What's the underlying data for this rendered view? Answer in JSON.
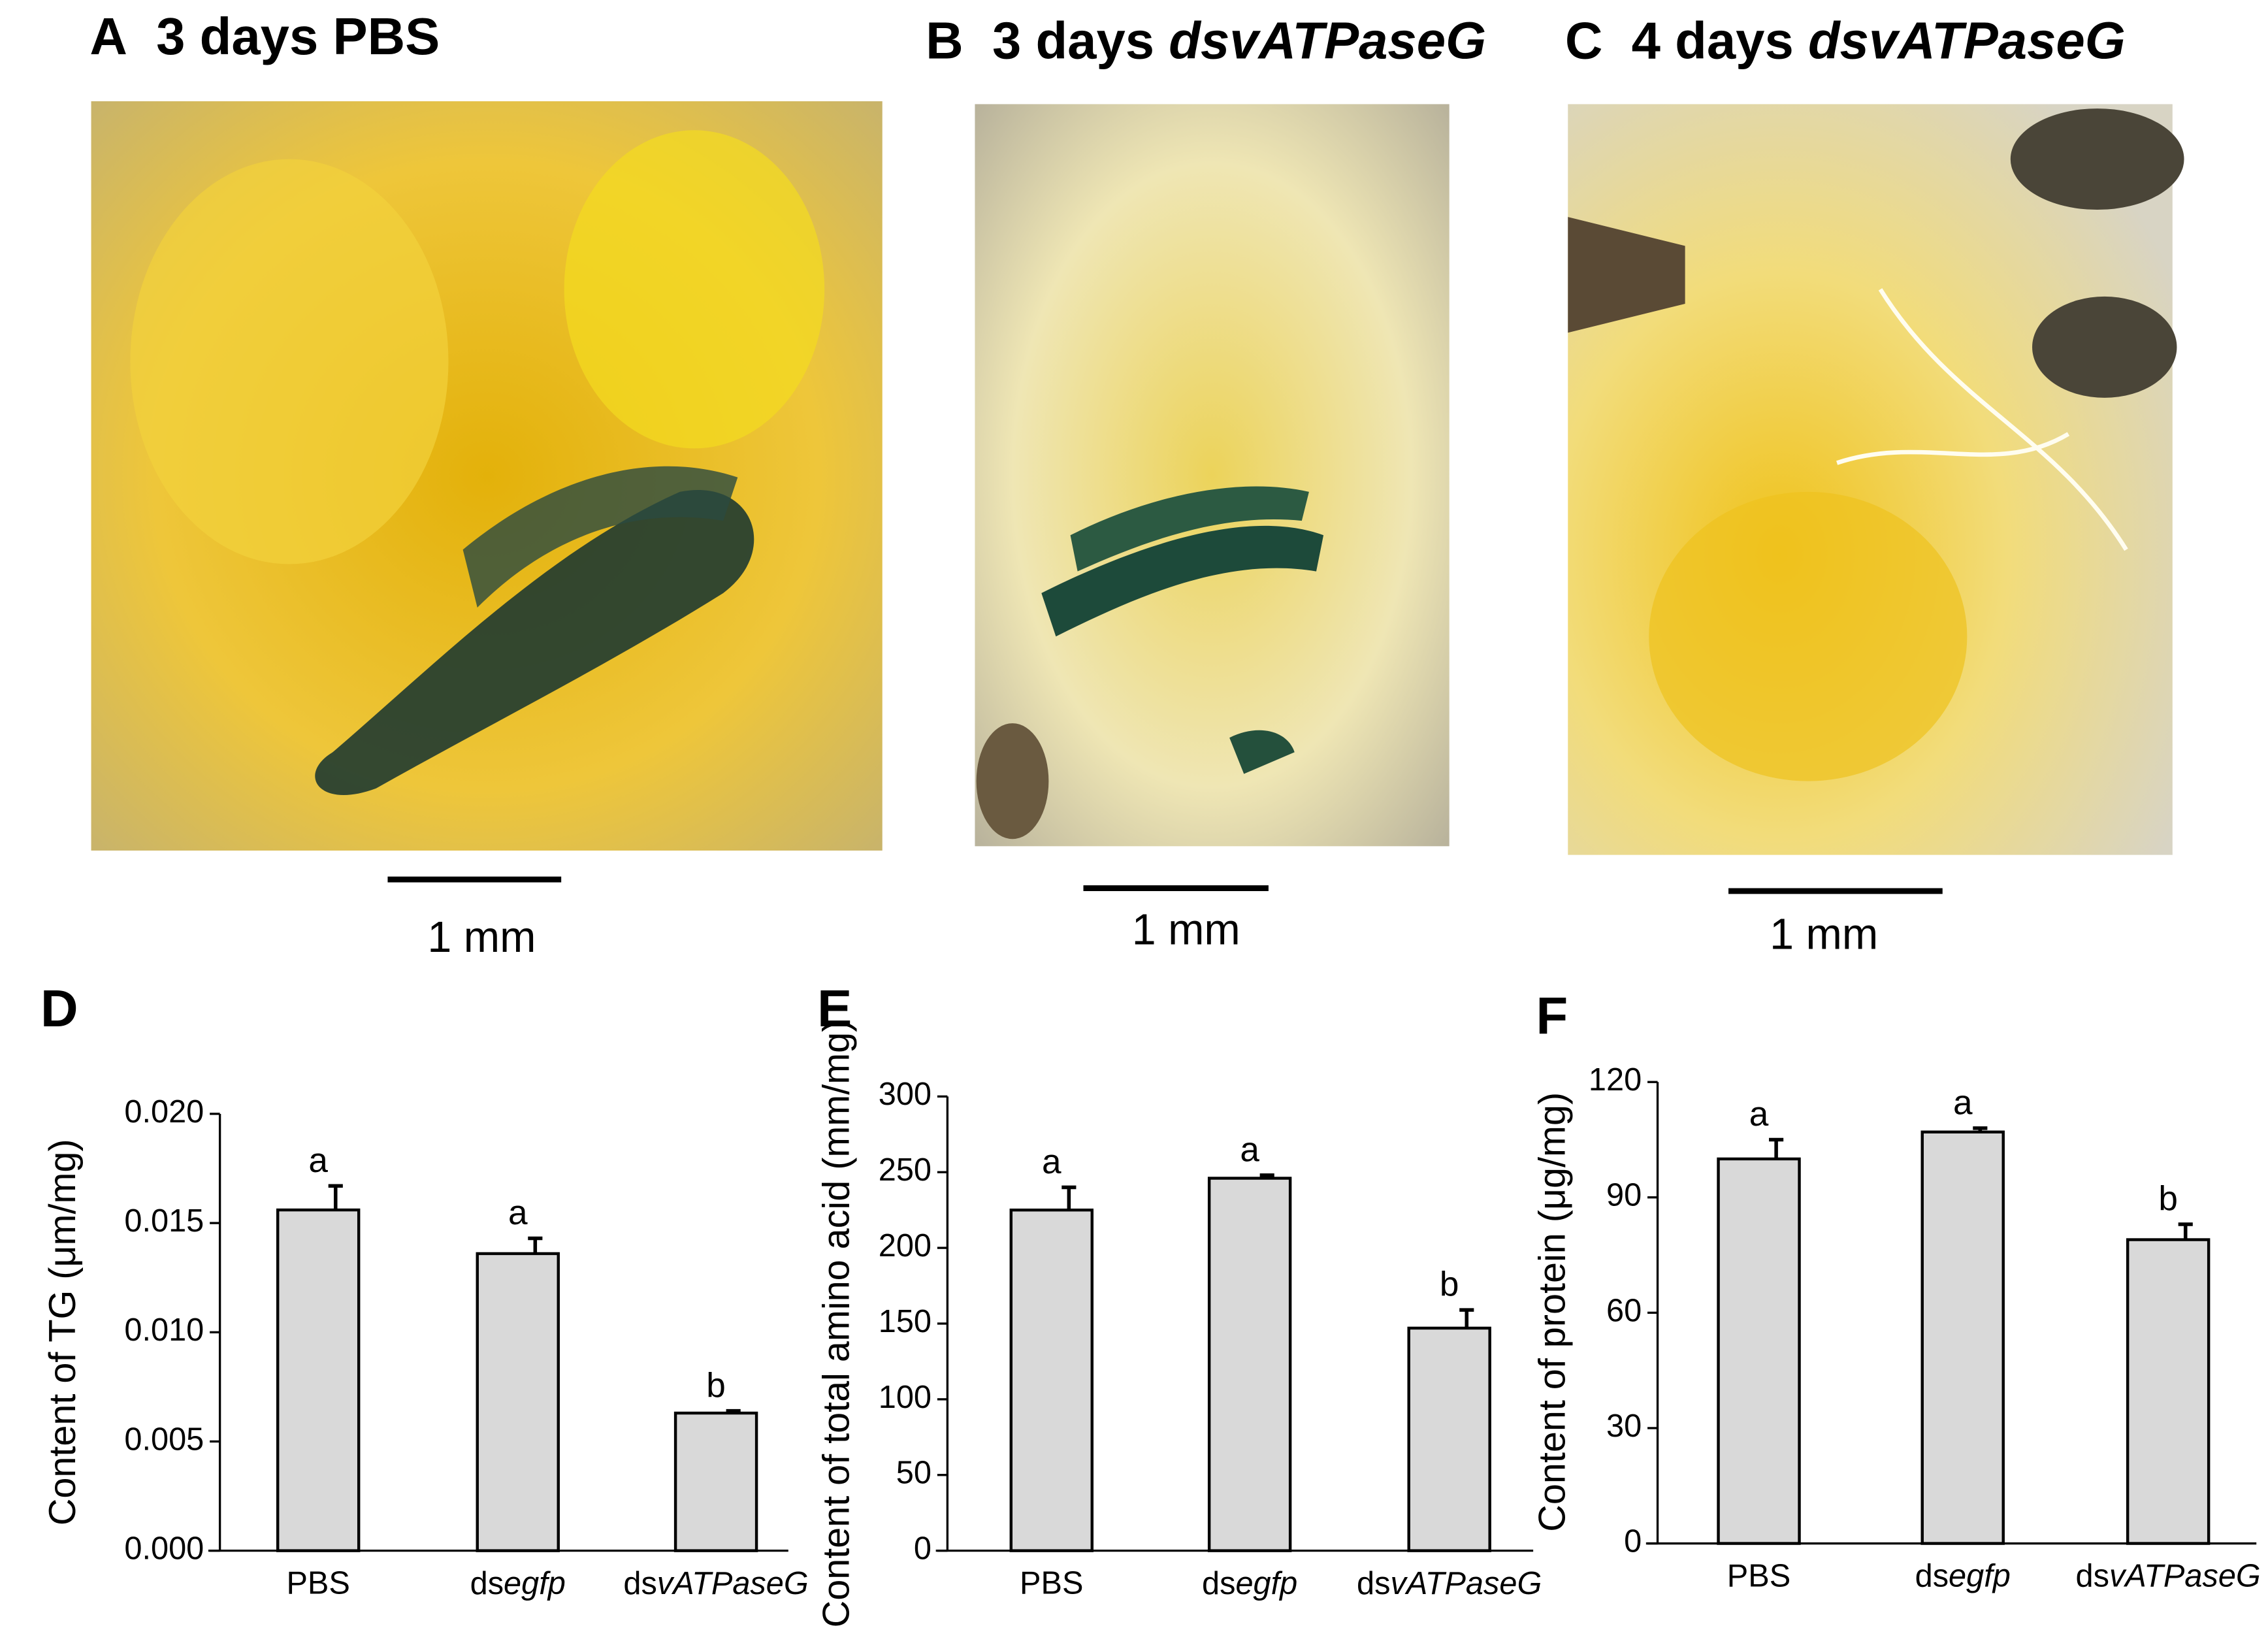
{
  "photo_panels": [
    {
      "label": "A",
      "time": "3 days",
      "treatment": "PBS",
      "treatment_italic": false,
      "scale_bar": "1 mm"
    },
    {
      "label": "B",
      "time": "3 days",
      "treatment": "dsvATPaseG",
      "treatment_italic": true,
      "scale_bar": "1 mm"
    },
    {
      "label": "C",
      "time": "4 days",
      "treatment": "dsvATPaseG",
      "treatment_italic": true,
      "scale_bar": "1 mm"
    }
  ],
  "chart_data": [
    {
      "type": "bar",
      "panel": "D",
      "y_label": "Content of TG (μm/mg)",
      "categories": [
        "PBS",
        "dsegfp",
        "dsvATPaseG"
      ],
      "category_italic_from": [
        null,
        2,
        2
      ],
      "values": [
        0.0156,
        0.0136,
        0.0063
      ],
      "errors": [
        0.0011,
        0.0007,
        0.0001
      ],
      "labels": [
        "a",
        "a",
        "b"
      ],
      "color": "#d9d9d9",
      "ylim": [
        0,
        0.02
      ],
      "yticks": [
        {
          "value": 0,
          "label": "0.000"
        },
        {
          "value": 0.005,
          "label": "0.005"
        },
        {
          "value": 0.01,
          "label": "0.010"
        },
        {
          "value": 0.015,
          "label": "0.015"
        },
        {
          "value": 0.02,
          "label": "0.020"
        }
      ]
    },
    {
      "type": "bar",
      "panel": "E",
      "y_label": "Content of total amino acid (mm/mg)",
      "categories": [
        "PBS",
        "dsegfp",
        "dsvATPaseG"
      ],
      "category_italic_from": [
        null,
        2,
        2
      ],
      "values": [
        225,
        246,
        147
      ],
      "errors": [
        15,
        2,
        12
      ],
      "labels": [
        "a",
        "a",
        "b"
      ],
      "color": "#d9d9d9",
      "ylim": [
        0,
        300
      ],
      "yticks": [
        0,
        50,
        100,
        150,
        200,
        250,
        300
      ]
    },
    {
      "type": "bar",
      "panel": "F",
      "y_label": "Content of protein (μg/mg)",
      "categories": [
        "PBS",
        "dsegfp",
        "dsvATPaseG"
      ],
      "category_italic_from": [
        null,
        2,
        2
      ],
      "values": [
        100,
        107,
        79
      ],
      "errors": [
        5,
        1,
        4
      ],
      "labels": [
        "a",
        "a",
        "b"
      ],
      "color": "#d9d9d9",
      "ylim": [
        0,
        120
      ],
      "yticks": [
        0,
        30,
        60,
        90,
        120
      ]
    }
  ]
}
